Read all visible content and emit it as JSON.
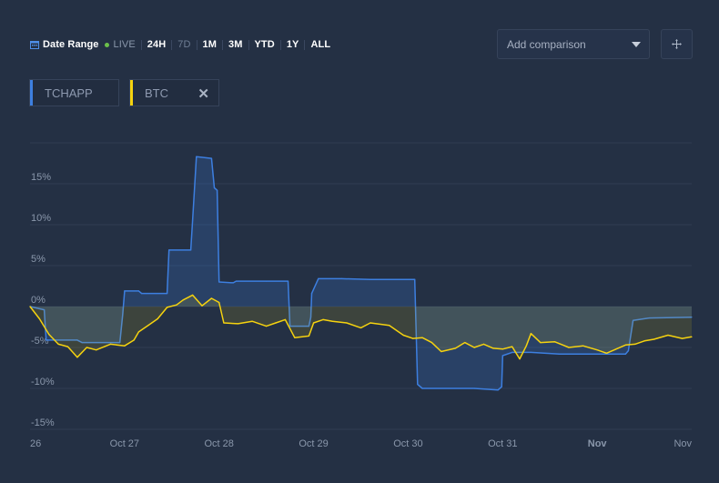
{
  "toolbar": {
    "date_range": "Date Range",
    "live": "LIVE",
    "ranges": [
      "24H",
      "7D",
      "1M",
      "3M",
      "YTD",
      "1Y",
      "ALL"
    ],
    "muted": [
      false,
      true,
      false,
      false,
      false,
      false,
      false
    ]
  },
  "compare": {
    "placeholder": "Add comparison"
  },
  "chips": {
    "primary": "TCHAPP",
    "secondary": "BTC"
  },
  "colors": {
    "primary": "#3d7fe0",
    "secondary": "#f5d20f",
    "live_dot": "#6cc04a",
    "grid": "#2f3c52",
    "axis_text": "#8a97ab"
  },
  "chart_data": {
    "type": "line",
    "xlabel": "",
    "ylabel": "",
    "ylim": [
      -15,
      20
    ],
    "y_ticks": [
      15,
      10,
      5,
      0,
      -5,
      -10,
      -15
    ],
    "y_tick_labels": [
      "15%",
      "10%",
      "5%",
      "0%",
      "-5%",
      "-10%",
      "-15%"
    ],
    "xlim": [
      26,
      33
    ],
    "x_ticks": [
      26,
      27,
      28,
      29,
      30,
      31,
      32,
      33
    ],
    "x_tick_labels": [
      "26",
      "Oct 27",
      "Oct 28",
      "Oct 29",
      "Oct 30",
      "Oct 31",
      "Nov",
      "Nov"
    ],
    "x_tick_bold": [
      false,
      false,
      false,
      false,
      false,
      false,
      true,
      false
    ],
    "series": [
      {
        "name": "TCHAPP",
        "points": [
          [
            26.0,
            0.0
          ],
          [
            26.15,
            -0.4
          ],
          [
            26.17,
            -4.1
          ],
          [
            26.5,
            -4.1
          ],
          [
            26.55,
            -4.4
          ],
          [
            26.95,
            -4.4
          ],
          [
            26.98,
            -1.0
          ],
          [
            27.0,
            1.9
          ],
          [
            27.15,
            1.9
          ],
          [
            27.18,
            1.6
          ],
          [
            27.45,
            1.6
          ],
          [
            27.47,
            6.9
          ],
          [
            27.7,
            6.9
          ],
          [
            27.72,
            10.5
          ],
          [
            27.76,
            18.3
          ],
          [
            27.92,
            18.1
          ],
          [
            27.95,
            14.5
          ],
          [
            27.98,
            14.2
          ],
          [
            28.0,
            3.0
          ],
          [
            28.15,
            2.9
          ],
          [
            28.18,
            3.1
          ],
          [
            28.5,
            3.1
          ],
          [
            28.73,
            3.1
          ],
          [
            28.75,
            -2.4
          ],
          [
            28.95,
            -2.4
          ],
          [
            28.97,
            -1.3
          ],
          [
            28.98,
            1.6
          ],
          [
            29.05,
            3.4
          ],
          [
            29.3,
            3.4
          ],
          [
            29.6,
            3.3
          ],
          [
            30.07,
            3.3
          ],
          [
            30.1,
            -9.5
          ],
          [
            30.15,
            -10.0
          ],
          [
            30.7,
            -10.0
          ],
          [
            30.95,
            -10.2
          ],
          [
            30.99,
            -9.8
          ],
          [
            31.0,
            -6.0
          ],
          [
            31.1,
            -5.6
          ],
          [
            31.3,
            -5.6
          ],
          [
            31.6,
            -5.8
          ],
          [
            32.0,
            -5.8
          ],
          [
            32.3,
            -5.8
          ],
          [
            32.33,
            -5.4
          ],
          [
            32.38,
            -1.7
          ],
          [
            32.55,
            -1.4
          ],
          [
            33.0,
            -1.3
          ]
        ]
      },
      {
        "name": "BTC",
        "points": [
          [
            26.0,
            0.0
          ],
          [
            26.1,
            -1.5
          ],
          [
            26.2,
            -3.4
          ],
          [
            26.3,
            -4.6
          ],
          [
            26.4,
            -4.9
          ],
          [
            26.5,
            -6.2
          ],
          [
            26.6,
            -5.0
          ],
          [
            26.7,
            -5.3
          ],
          [
            26.85,
            -4.6
          ],
          [
            27.0,
            -4.8
          ],
          [
            27.1,
            -4.1
          ],
          [
            27.15,
            -3.1
          ],
          [
            27.25,
            -2.3
          ],
          [
            27.35,
            -1.5
          ],
          [
            27.45,
            -0.1
          ],
          [
            27.55,
            0.2
          ],
          [
            27.62,
            0.8
          ],
          [
            27.72,
            1.4
          ],
          [
            27.82,
            0.1
          ],
          [
            27.92,
            1.0
          ],
          [
            28.0,
            0.5
          ],
          [
            28.05,
            -2.0
          ],
          [
            28.2,
            -2.1
          ],
          [
            28.35,
            -1.8
          ],
          [
            28.5,
            -2.4
          ],
          [
            28.6,
            -2.0
          ],
          [
            28.7,
            -1.6
          ],
          [
            28.8,
            -3.8
          ],
          [
            28.95,
            -3.6
          ],
          [
            29.0,
            -2.0
          ],
          [
            29.1,
            -1.6
          ],
          [
            29.2,
            -1.8
          ],
          [
            29.35,
            -2.0
          ],
          [
            29.5,
            -2.6
          ],
          [
            29.6,
            -2.0
          ],
          [
            29.8,
            -2.3
          ],
          [
            29.95,
            -3.5
          ],
          [
            30.05,
            -3.9
          ],
          [
            30.15,
            -3.8
          ],
          [
            30.25,
            -4.4
          ],
          [
            30.35,
            -5.5
          ],
          [
            30.5,
            -5.1
          ],
          [
            30.6,
            -4.4
          ],
          [
            30.7,
            -5.0
          ],
          [
            30.8,
            -4.6
          ],
          [
            30.9,
            -5.1
          ],
          [
            31.0,
            -5.2
          ],
          [
            31.1,
            -4.9
          ],
          [
            31.18,
            -6.4
          ],
          [
            31.25,
            -4.8
          ],
          [
            31.3,
            -3.3
          ],
          [
            31.4,
            -4.4
          ],
          [
            31.55,
            -4.3
          ],
          [
            31.7,
            -5.0
          ],
          [
            31.85,
            -4.8
          ],
          [
            32.0,
            -5.3
          ],
          [
            32.1,
            -5.7
          ],
          [
            32.2,
            -5.2
          ],
          [
            32.3,
            -4.7
          ],
          [
            32.4,
            -4.6
          ],
          [
            32.5,
            -4.2
          ],
          [
            32.6,
            -4.0
          ],
          [
            32.75,
            -3.5
          ],
          [
            32.9,
            -3.9
          ],
          [
            33.0,
            -3.7
          ]
        ]
      }
    ]
  }
}
